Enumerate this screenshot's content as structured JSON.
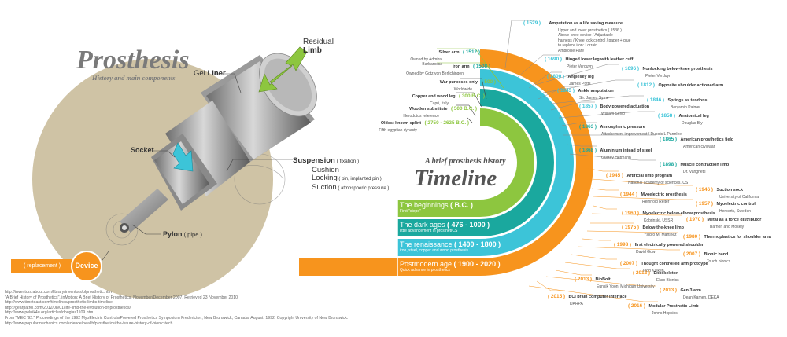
{
  "header": {
    "title": "Prosthesis",
    "subtitle": "History and main components"
  },
  "components": {
    "residual": "Residual",
    "residual_b": "Limb",
    "gel": "Gel ",
    "gel_b": "Liner",
    "socket": "Socket",
    "susp": "Suspension",
    "susp_n": " ( fixation )",
    "cushion": "Cushion",
    "locking": "Locking",
    "locking_n": " ( pin, implanted pin )",
    "suction": "Suction",
    "suction_n": " ( atmospheric pressure )",
    "pylon": "Pylon",
    "pylon_n": " ( pipe )",
    "replacement": "( replacement )",
    "device": "Device"
  },
  "timeline": {
    "subtitle": "A brief prosthesis history",
    "title": "Timeline",
    "ages": [
      {
        "name": "The beginnings",
        "years": " ( B.C. )",
        "desc": "First \"steps\""
      },
      {
        "name": "The dark ages",
        "years": " ( 476 - 1000 )",
        "desc": "little advancement in prosthetICS"
      },
      {
        "name": "The renaissance",
        "years": " ( 1400 - 1800 )",
        "desc": "iron, steel, copper and wood prosthesis"
      },
      {
        "name": "Postmodern age",
        "years": " ( 1900 - 2020 )",
        "desc": "Quick advance in prosthetics"
      }
    ]
  },
  "left_events": [
    {
      "year": "( 1512 )",
      "name": "Silver arm",
      "sub": "Owned by Admiral Barbarossa"
    },
    {
      "year": "( 1508 )",
      "name": "Iron arm",
      "sub": "Owned by Gotz von Berlichingen"
    },
    {
      "year": "( 500 )",
      "name": "War purposes only",
      "sub": "Worldwide"
    },
    {
      "year": "( 300 B.C. )",
      "name": "Copper and wood leg",
      "sub": "Capri, Italy"
    },
    {
      "year": "( 500 B.C. )",
      "name": "Wooden substitute",
      "sub": "Herodotus reference"
    },
    {
      "year": "( 2750 - 2625 B.C. )",
      "name": "Oldest known splint",
      "sub": "Fifth egyptian dynasty"
    }
  ],
  "right_events": [
    {
      "year": "( 1529 )",
      "name": "Amputation as a life saving  measure",
      "sub": "Upper and lower prosthetics ( 1536 )",
      "sub2": "Above-knee device / Adjustable",
      "sub3": "harness / Knee lock control / paper + glue",
      "sub4": "to replace iron: Lorrain.",
      "sub5": "Ambroise Pare"
    },
    {
      "year": "( 1690 )",
      "name": "Hinged lower leg with leather cuff",
      "sub": "Pieter Verduyn"
    },
    {
      "year": "( 1696 )",
      "name": "Nonlocking below-knee prosthesis",
      "sub": "Pieter Verduyn"
    },
    {
      "year": "( 1800 )",
      "name": "Anglesey leg",
      "sub": "James Potts"
    },
    {
      "year": "( 1812 )",
      "name": "Opposite shoulder actioned arm",
      "sub": ""
    },
    {
      "year": "( 1843 )",
      "name": "Ankle amputation",
      "sub": "Sir. James Syme"
    },
    {
      "year": "( 1846 )",
      "name": "Springs as tendons",
      "sub": "Benjamin Palmer"
    },
    {
      "year": "( 1857 )",
      "name": "Body powered actuation",
      "sub": "William Selvo"
    },
    {
      "year": "( 1858 )",
      "name": "Anatomical leg",
      "sub": "Douglas Bly"
    },
    {
      "year": "( 1863 )",
      "name": "Atmospheric pressure",
      "sub": "Attachement improvement / Dubois L Parmlee"
    },
    {
      "year": "( 1865 )",
      "name": "American prosthetics field",
      "sub": "American civil war"
    },
    {
      "year": "( 1868 )",
      "name": "Aluminium intead of steel",
      "sub": "Gustav Hermann"
    },
    {
      "year": "( 1898 )",
      "name": "Muscle contraction limb",
      "sub": "Dr. Vanghetti"
    },
    {
      "year": "( 1945 )",
      "name": "Artificial limb program",
      "sub": "National academy of sciences. US"
    },
    {
      "year": "( 1946 )",
      "name": "Suction sock",
      "sub": "University of California"
    },
    {
      "year": "( 1944 )",
      "name": "Myoelectric prosthesis",
      "sub": "Reinhold Reiter"
    },
    {
      "year": "( 1957 )",
      "name": "Myoelectric control",
      "sub": "Herberts, Sweden"
    },
    {
      "year": "( 1960 )",
      "name": "Myoelectric below-elbow prosthesis",
      "sub": "Kobrinski, USSR"
    },
    {
      "year": "( 1970 )",
      "name": "Metal as a force distributor",
      "sub": "Barnon and Mosely"
    },
    {
      "year": "( 1975 )",
      "name": "Below-the-knee limb",
      "sub": "Ysidro M. Martinez"
    },
    {
      "year": "( 1980 )",
      "name": "Thermoplastics for shoulder area",
      "sub": ""
    },
    {
      "year": "( 1998 )",
      "name": "first electrically powered shoulder",
      "sub": "David Gow"
    },
    {
      "year": "( 2007 )",
      "name": "Bionic hand",
      "sub": "Touch bionics"
    },
    {
      "year": "( 2007 )",
      "name": "Thought controlled arm protoype",
      "sub": "Todd Kuiken"
    },
    {
      "year": "( 2012 )",
      "name": "Exoskeleton",
      "sub": "Ekso Bionics"
    },
    {
      "year": "( 2013 )",
      "name": "BioBolt",
      "sub": "Eunsik Yoon, Michigan University"
    },
    {
      "year": "( 2013 )",
      "name": "Gen 3 arm",
      "sub": "Dean Kamen, DEKA"
    },
    {
      "year": "( 2015 )",
      "name": "BCI brain computer interface",
      "sub": "DARPA"
    },
    {
      "year": "( 2016 )",
      "name": "Modular Prosthetic Limb",
      "sub": "Johns Hopkins"
    }
  ],
  "references": [
    "http://inventors.about.com/library/inventors/blprosthetic.htm",
    "\"A Brief History of Prosthetics\". inMotion: A Brief History of Prosthetics. November/December 2007. Retrieved 23 November 2010",
    "http://www.timetoast.com/timelines/prosthetic-limbs-timeline",
    "http://gearpatrol.com/2012/08/01/life-limb-the-evolution-of-prosthetics/",
    "http://www.pelnik4u.org/articles/douglas1109.htm",
    "From \"MEC '92.\" Proceedings of the 1992 MyoElectric Controls/Powered Prosthetics Symposium Fredericton, New Brunswick, Canada: August, 1992. Copyright University of New Brunswick.",
    "http://www.popularmechanics.com/science/health/prosthetics/the-future-history-of-bionic-tech"
  ],
  "colors": {
    "green": "#8dc63f",
    "teal": "#1aa89e",
    "cyan": "#3cc4d8",
    "orange": "#f7941d",
    "tan": "#cfc3a5"
  }
}
